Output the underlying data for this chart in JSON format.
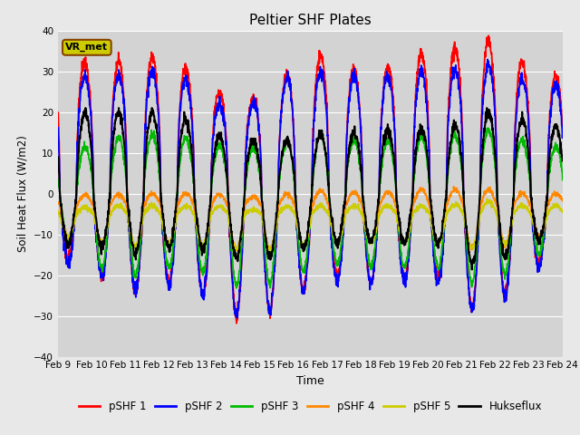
{
  "title": "Peltier SHF Plates",
  "xlabel": "Time",
  "ylabel": "Soil Heat Flux (W/m2)",
  "ylim": [
    -40,
    40
  ],
  "yticks": [
    -40,
    -30,
    -20,
    -10,
    0,
    10,
    20,
    30,
    40
  ],
  "xtick_labels": [
    "Feb 9",
    "Feb 10",
    "Feb 11",
    "Feb 12",
    "Feb 13",
    "Feb 14",
    "Feb 15",
    "Feb 16",
    "Feb 17",
    "Feb 18",
    "Feb 19",
    "Feb 20",
    "Feb 21",
    "Feb 22",
    "Feb 23",
    "Feb 24"
  ],
  "bg_color": "#d3d3d3",
  "fig_color": "#e8e8e8",
  "legend_entries": [
    "pSHF 1",
    "pSHF 2",
    "pSHF 3",
    "pSHF 4",
    "pSHF 5",
    "Hukseflux"
  ],
  "legend_colors": [
    "#ff0000",
    "#0000ff",
    "#00bb00",
    "#ff8800",
    "#cccc00",
    "#000000"
  ],
  "annotation_text": "VR_met",
  "annotation_bg": "#cccc00",
  "annotation_border": "#884400",
  "n_days": 15,
  "samples_per_day": 144
}
